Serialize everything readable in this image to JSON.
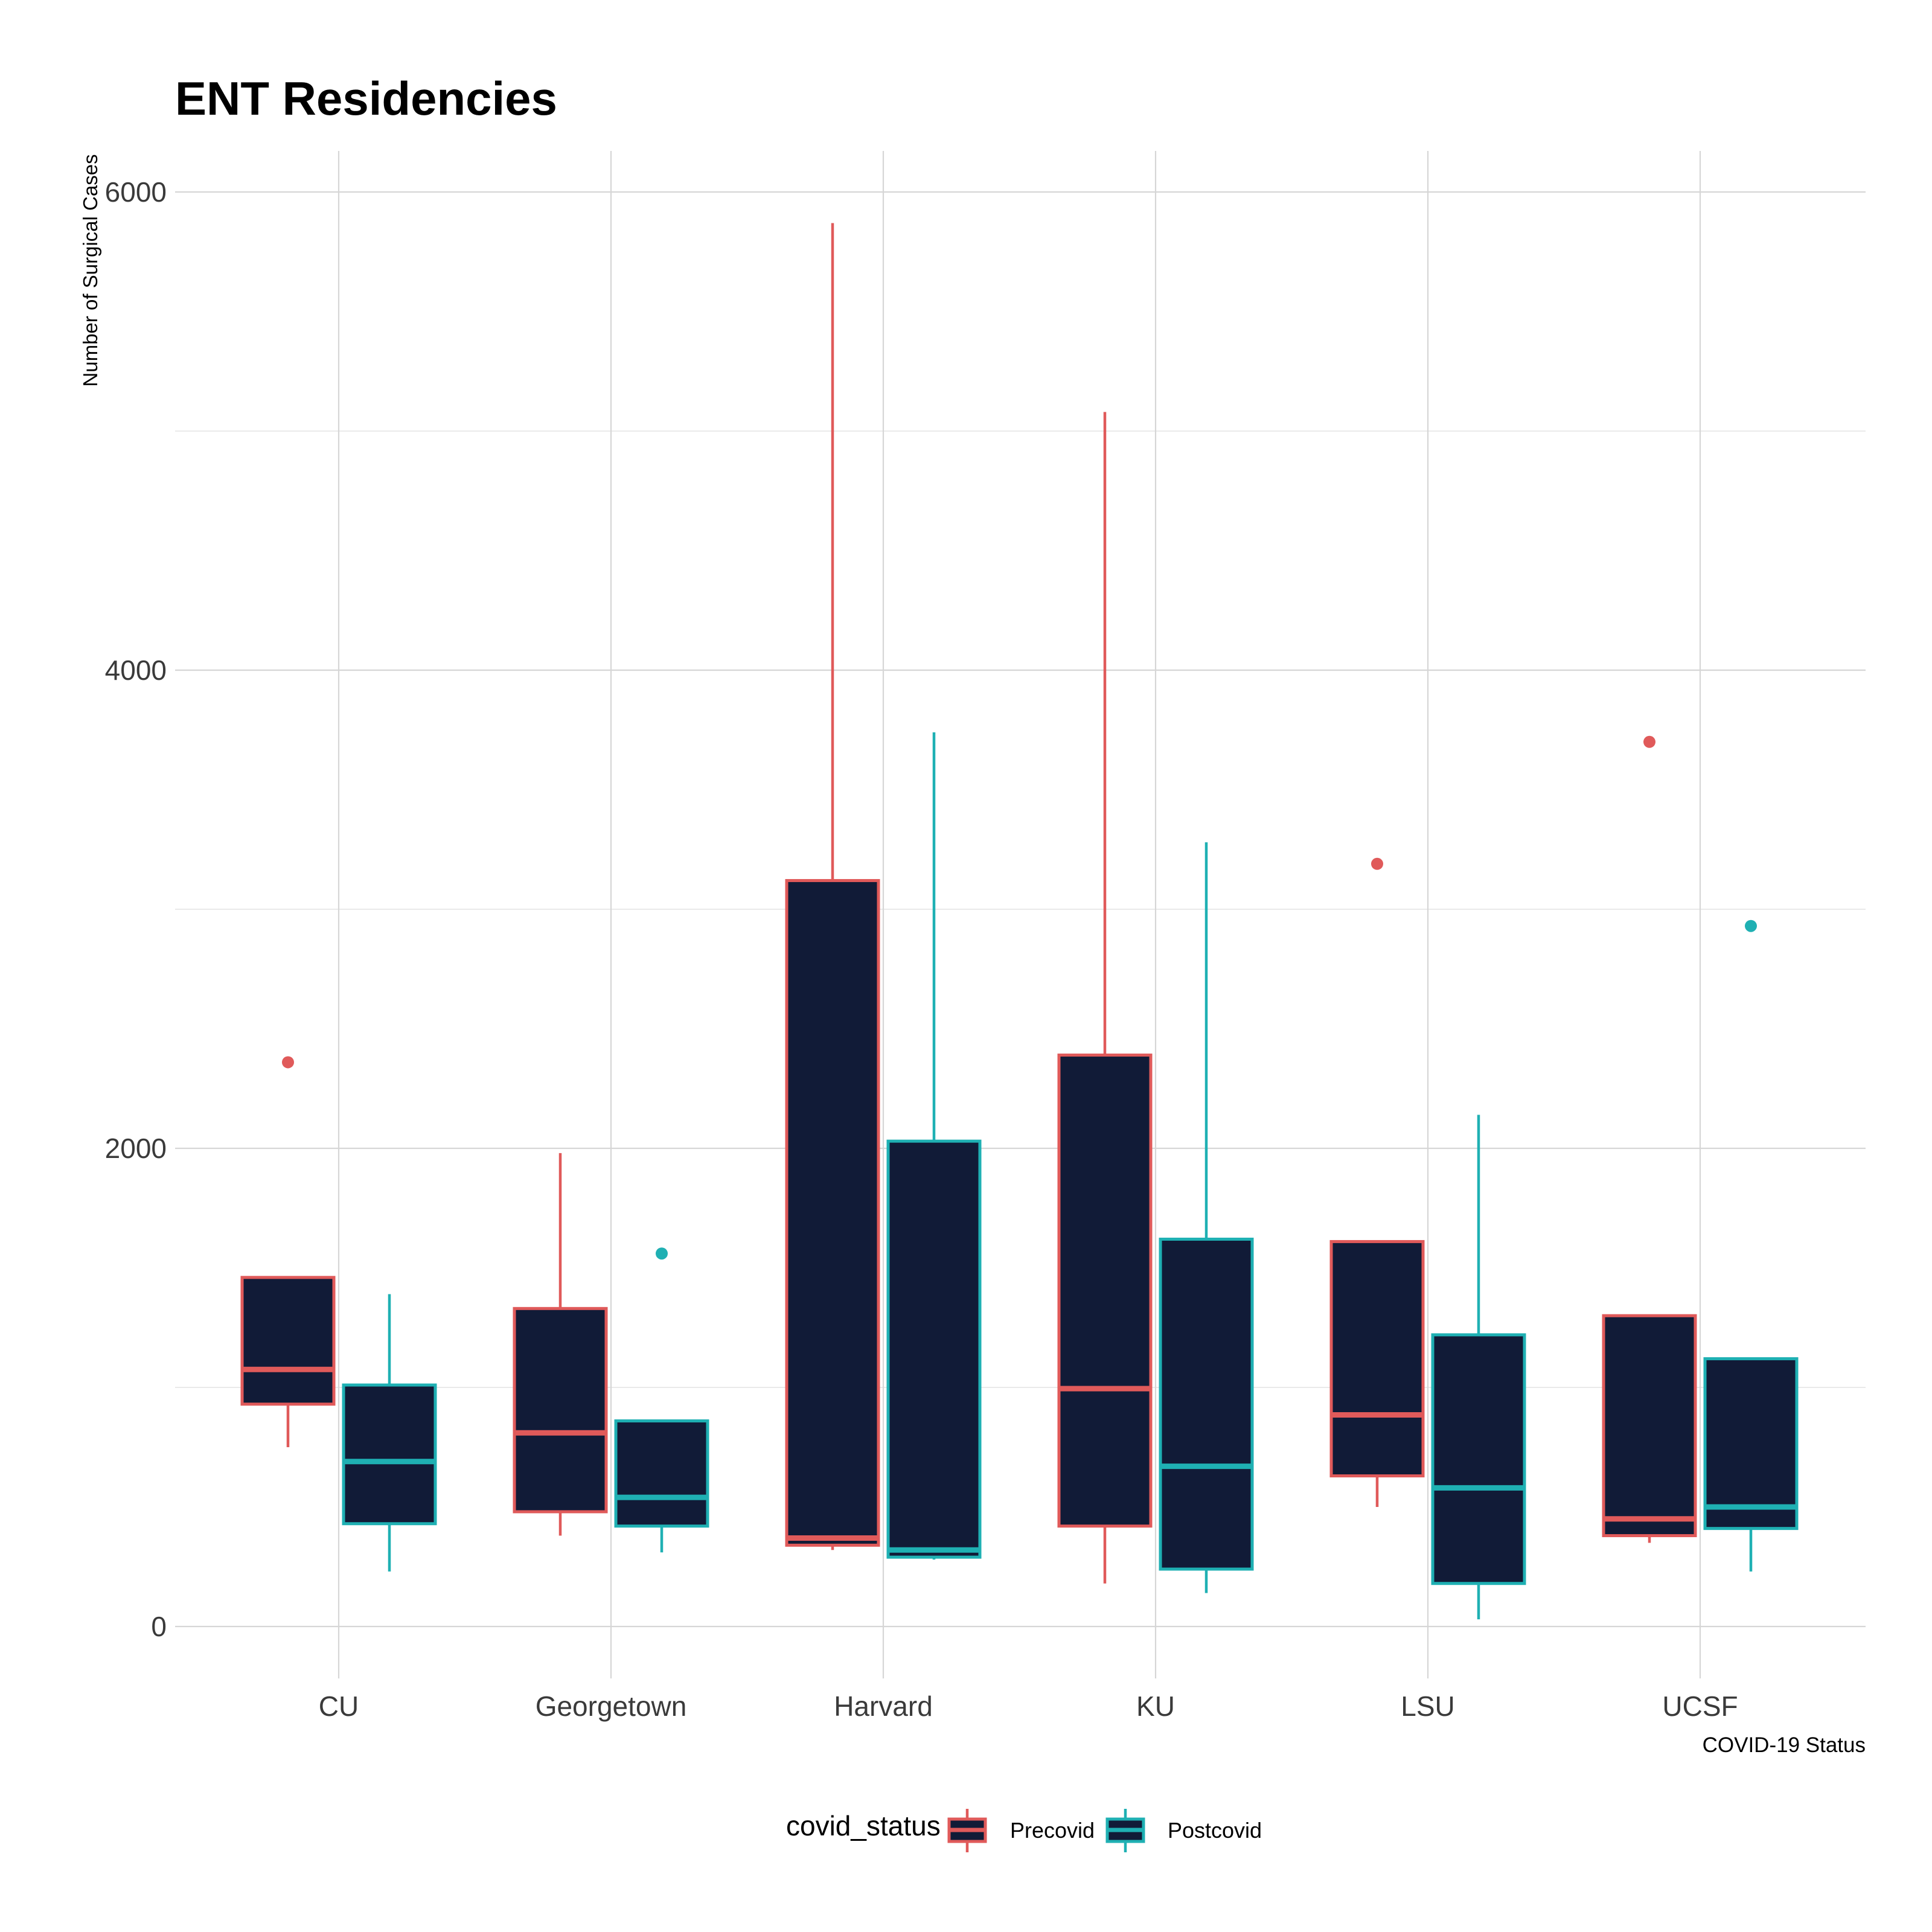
{
  "chart_data": {
    "type": "box",
    "title": "ENT Residencies",
    "xlabel": "COVID-19 Status",
    "ylabel": "Number of Surgical Cases",
    "ylim": [
      -170,
      6220
    ],
    "yticks": [
      0,
      2000,
      4000,
      6000
    ],
    "grid": true,
    "legend": {
      "title": "covid_status",
      "position": "bottom"
    },
    "box_fill": "#111b37",
    "categories": [
      "CU",
      "Georgetown",
      "Harvard",
      "KU",
      "LSU",
      "UCSF"
    ],
    "series": [
      {
        "name": "Precovid",
        "color": "#e05a5a",
        "boxes": [
          {
            "min": 750,
            "q1": 930,
            "median": 1075,
            "q3": 1460,
            "max": 1460,
            "outliers": [
              2360
            ]
          },
          {
            "min": 380,
            "q1": 480,
            "median": 810,
            "q3": 1330,
            "max": 1980,
            "outliers": []
          },
          {
            "min": 320,
            "q1": 340,
            "median": 370,
            "q3": 3120,
            "max": 5870,
            "outliers": []
          },
          {
            "min": 180,
            "q1": 420,
            "median": 995,
            "q3": 2390,
            "max": 5080,
            "outliers": []
          },
          {
            "min": 500,
            "q1": 630,
            "median": 885,
            "q3": 1610,
            "max": 1610,
            "outliers": [
              3190
            ]
          },
          {
            "min": 350,
            "q1": 380,
            "median": 450,
            "q3": 1300,
            "max": 1300,
            "outliers": [
              3700
            ]
          }
        ]
      },
      {
        "name": "Postcovid",
        "color": "#1fb0b3",
        "boxes": [
          {
            "min": 230,
            "q1": 430,
            "median": 690,
            "q3": 1010,
            "max": 1390,
            "outliers": []
          },
          {
            "min": 310,
            "q1": 420,
            "median": 540,
            "q3": 860,
            "max": 860,
            "outliers": [
              1560
            ]
          },
          {
            "min": 280,
            "q1": 290,
            "median": 320,
            "q3": 2030,
            "max": 3740,
            "outliers": []
          },
          {
            "min": 140,
            "q1": 240,
            "median": 670,
            "q3": 1620,
            "max": 3280,
            "outliers": []
          },
          {
            "min": 30,
            "q1": 180,
            "median": 580,
            "q3": 1220,
            "max": 2140,
            "outliers": []
          },
          {
            "min": 230,
            "q1": 410,
            "median": 500,
            "q3": 1120,
            "max": 1120,
            "outliers": [
              2930
            ]
          }
        ]
      }
    ]
  }
}
